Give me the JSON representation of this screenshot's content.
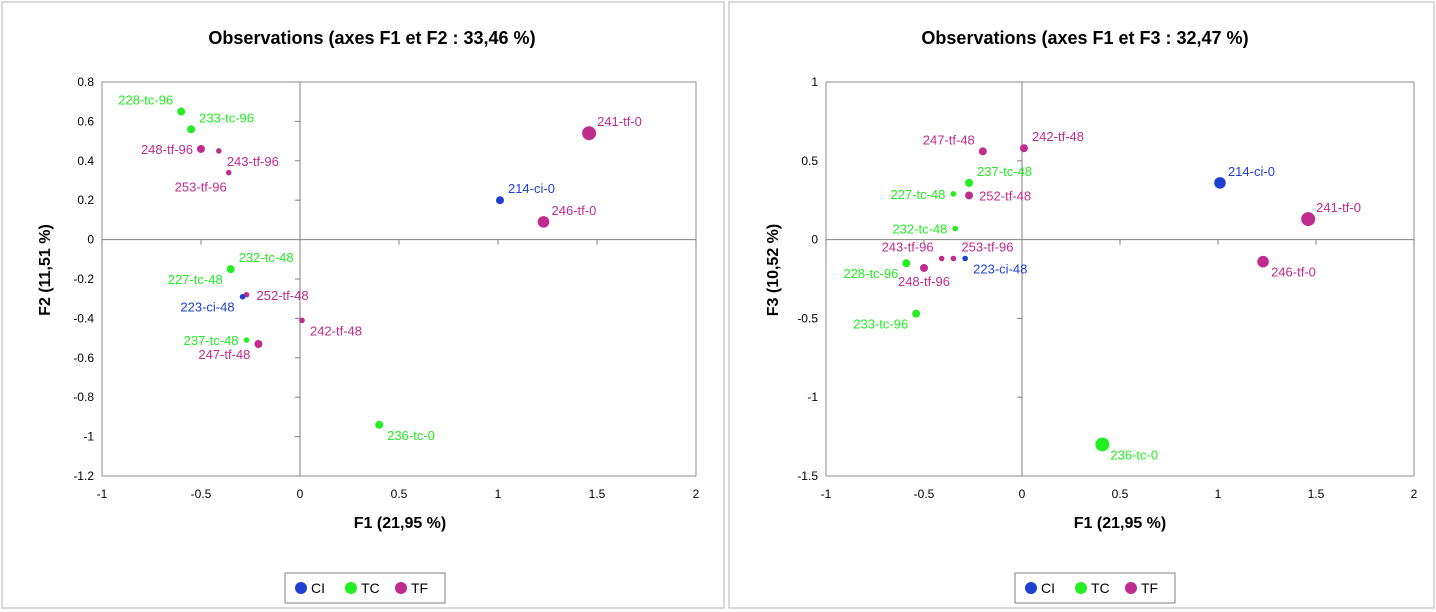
{
  "colors": {
    "CI": "#1f3fd0",
    "TC": "#22ee22",
    "TF": "#c02b8e"
  },
  "chart_data": [
    {
      "type": "scatter",
      "title": "Observations (axes F1 et F2 : 33,46 %)",
      "xlabel": "F1 (21,95 %)",
      "ylabel": "F2 (11,51 %)",
      "xlim": [
        -1,
        2
      ],
      "ylim": [
        -1.2,
        0.8
      ],
      "xticks": [
        -1,
        -0.5,
        0,
        0.5,
        1,
        1.5,
        2
      ],
      "xtick_labels": [
        "-1",
        "-0.5",
        "0",
        "0.5",
        "1",
        "1.5",
        "2"
      ],
      "yticks": [
        -1.2,
        -1,
        -0.8,
        -0.6,
        -0.4,
        -0.2,
        0,
        0.2,
        0.4,
        0.6,
        0.8
      ],
      "ytick_labels": [
        "-1.2",
        "-1",
        "-0.8",
        "-0.6",
        "-0.4",
        "-0.2",
        "0",
        "0.2",
        "0.4",
        "0.6",
        "0.8"
      ],
      "legend": {
        "placement": "bottom",
        "entries": [
          "CI",
          "TC",
          "TF"
        ]
      },
      "points": [
        {
          "label": "228-tc-96",
          "group": "TC",
          "x": -0.6,
          "y": 0.65,
          "size": "small",
          "label_pos": "left-up"
        },
        {
          "label": "233-tc-96",
          "group": "TC",
          "x": -0.55,
          "y": 0.56,
          "size": "small",
          "label_pos": "right-up"
        },
        {
          "label": "248-tf-96",
          "group": "TF",
          "x": -0.5,
          "y": 0.46,
          "size": "small",
          "label_pos": "left"
        },
        {
          "label": "243-tf-96",
          "group": "TF",
          "x": -0.41,
          "y": 0.45,
          "size": "tiny",
          "label_pos": "right-down"
        },
        {
          "label": "253-tf-96",
          "group": "TF",
          "x": -0.36,
          "y": 0.34,
          "size": "tiny",
          "label_pos": "below-left"
        },
        {
          "label": "241-tf-0",
          "group": "TF",
          "x": 1.46,
          "y": 0.54,
          "size": "large",
          "label_pos": "right-up"
        },
        {
          "label": "214-ci-0",
          "group": "CI",
          "x": 1.01,
          "y": 0.2,
          "size": "small",
          "label_pos": "right-up"
        },
        {
          "label": "246-tf-0",
          "group": "TF",
          "x": 1.23,
          "y": 0.09,
          "size": "medium",
          "label_pos": "right-up"
        },
        {
          "label": "232-tc-48",
          "group": "TC",
          "x": -0.35,
          "y": -0.15,
          "size": "small",
          "label_pos": "right-up"
        },
        {
          "label": "227-tc-48",
          "group": "TC",
          "x": -0.35,
          "y": -0.15,
          "size": "tiny",
          "label_pos": "left-down"
        },
        {
          "label": "252-tf-48",
          "group": "TF",
          "x": -0.27,
          "y": -0.28,
          "size": "tiny",
          "label_pos": "right"
        },
        {
          "label": "223-ci-48",
          "group": "CI",
          "x": -0.29,
          "y": -0.29,
          "size": "tiny",
          "label_pos": "left-down"
        },
        {
          "label": "242-tf-48",
          "group": "TF",
          "x": 0.01,
          "y": -0.41,
          "size": "tiny",
          "label_pos": "right-down"
        },
        {
          "label": "237-tc-48",
          "group": "TC",
          "x": -0.27,
          "y": -0.51,
          "size": "tiny",
          "label_pos": "left"
        },
        {
          "label": "247-tf-48",
          "group": "TF",
          "x": -0.21,
          "y": -0.53,
          "size": "small",
          "label_pos": "left-down"
        },
        {
          "label": "236-tc-0",
          "group": "TC",
          "x": 0.4,
          "y": -0.94,
          "size": "small",
          "label_pos": "right-down"
        }
      ]
    },
    {
      "type": "scatter",
      "title": "Observations (axes F1 et F3 : 32,47 %)",
      "xlabel": "F1 (21,95 %)",
      "ylabel": "F3 (10,52 %)",
      "xlim": [
        -1,
        2
      ],
      "ylim": [
        -1.5,
        1
      ],
      "xticks": [
        -1,
        -0.5,
        0,
        0.5,
        1,
        1.5,
        2
      ],
      "xtick_labels": [
        "-1",
        "-0.5",
        "0",
        "0.5",
        "1",
        "1.5",
        "2"
      ],
      "yticks": [
        -1.5,
        -1,
        -0.5,
        0,
        0.5,
        1
      ],
      "ytick_labels": [
        "-1.5",
        "-1",
        "-0.5",
        "0",
        "0.5",
        "1"
      ],
      "legend": {
        "placement": "bottom",
        "entries": [
          "CI",
          "TC",
          "TF"
        ]
      },
      "points": [
        {
          "label": "247-tf-48",
          "group": "TF",
          "x": -0.2,
          "y": 0.56,
          "size": "small",
          "label_pos": "left-up"
        },
        {
          "label": "242-tf-48",
          "group": "TF",
          "x": 0.01,
          "y": 0.58,
          "size": "small",
          "label_pos": "right-up"
        },
        {
          "label": "237-tc-48",
          "group": "TC",
          "x": -0.27,
          "y": 0.36,
          "size": "small",
          "label_pos": "right-up"
        },
        {
          "label": "227-tc-48",
          "group": "TC",
          "x": -0.35,
          "y": 0.29,
          "size": "tiny",
          "label_pos": "left"
        },
        {
          "label": "252-tf-48",
          "group": "TF",
          "x": -0.27,
          "y": 0.28,
          "size": "small",
          "label_pos": "right"
        },
        {
          "label": "214-ci-0",
          "group": "CI",
          "x": 1.01,
          "y": 0.36,
          "size": "medium",
          "label_pos": "right-up"
        },
        {
          "label": "241-tf-0",
          "group": "TF",
          "x": 1.46,
          "y": 0.13,
          "size": "large",
          "label_pos": "right-up"
        },
        {
          "label": "232-tc-48",
          "group": "TC",
          "x": -0.34,
          "y": 0.07,
          "size": "tiny",
          "label_pos": "left"
        },
        {
          "label": "243-tf-96",
          "group": "TF",
          "x": -0.41,
          "y": -0.12,
          "size": "tiny",
          "label_pos": "left-up"
        },
        {
          "label": "253-tf-96",
          "group": "TF",
          "x": -0.35,
          "y": -0.12,
          "size": "tiny",
          "label_pos": "right-up"
        },
        {
          "label": "223-ci-48",
          "group": "CI",
          "x": -0.29,
          "y": -0.12,
          "size": "tiny",
          "label_pos": "right-down"
        },
        {
          "label": "228-tc-96",
          "group": "TC",
          "x": -0.59,
          "y": -0.15,
          "size": "small",
          "label_pos": "left-down"
        },
        {
          "label": "248-tf-96",
          "group": "TF",
          "x": -0.5,
          "y": -0.18,
          "size": "small",
          "label_pos": "below"
        },
        {
          "label": "246-tf-0",
          "group": "TF",
          "x": 1.23,
          "y": -0.14,
          "size": "medium",
          "label_pos": "right-down"
        },
        {
          "label": "233-tc-96",
          "group": "TC",
          "x": -0.54,
          "y": -0.47,
          "size": "small",
          "label_pos": "left-down"
        },
        {
          "label": "236-tc-0",
          "group": "TC",
          "x": 0.41,
          "y": -1.3,
          "size": "large",
          "label_pos": "right-down"
        }
      ]
    }
  ]
}
